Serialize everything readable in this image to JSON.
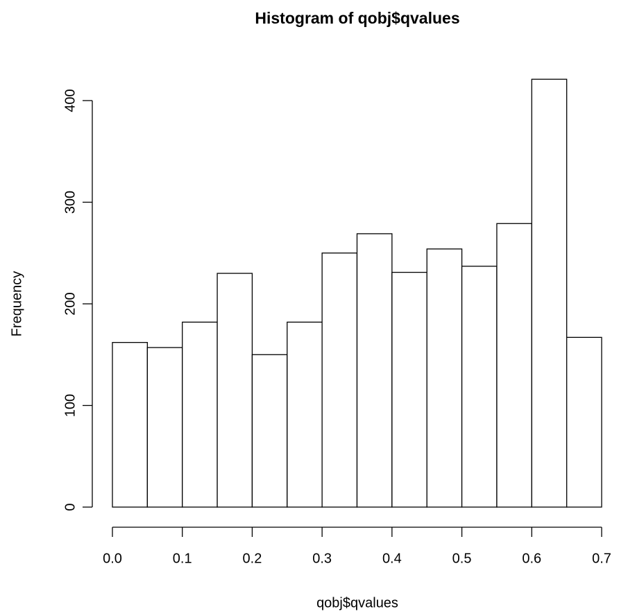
{
  "chart_data": {
    "type": "histogram",
    "title": "Histogram of qobj$qvalues",
    "x_label": "qobj$qvalues",
    "y_label": "Frequency",
    "bins": [
      0,
      0.05,
      0.1,
      0.15,
      0.2,
      0.25,
      0.3,
      0.35,
      0.4,
      0.45,
      0.5,
      0.55,
      0.6,
      0.65,
      0.7
    ],
    "counts": [
      162,
      157,
      182,
      230,
      150,
      182,
      250,
      269,
      231,
      254,
      237,
      279,
      421,
      167
    ],
    "color": "#ffffff",
    "xlim": [
      0,
      0.7
    ],
    "xticks": [
      {
        "value": 0,
        "label": "0.0"
      },
      0.1,
      0.2,
      0.3,
      0.4,
      0.5,
      0.6,
      0.7
    ],
    "ylim": [
      0,
      400
    ],
    "yticks": [
      0,
      100,
      200,
      300,
      400
    ]
  }
}
